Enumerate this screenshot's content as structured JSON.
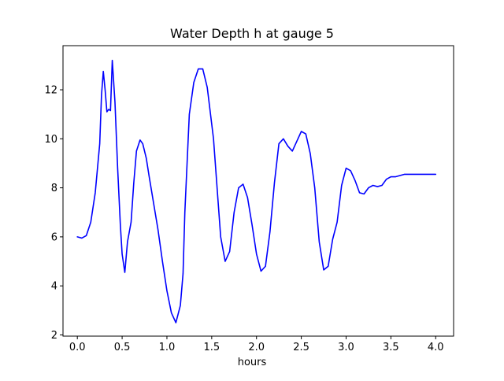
{
  "chart_data": {
    "type": "line",
    "title": "Water Depth h at gauge 5",
    "xlabel": "hours",
    "ylabel": "",
    "xlim": [
      -0.16,
      4.2
    ],
    "ylim": [
      1.95,
      13.8
    ],
    "xticks": [
      0.0,
      0.5,
      1.0,
      1.5,
      2.0,
      2.5,
      3.0,
      3.5,
      4.0
    ],
    "xtick_labels": [
      "0.0",
      "0.5",
      "1.0",
      "1.5",
      "2.0",
      "2.5",
      "3.0",
      "3.5",
      "4.0"
    ],
    "yticks": [
      2,
      4,
      6,
      8,
      10,
      12
    ],
    "ytick_labels": [
      "2",
      "4",
      "6",
      "8",
      "10",
      "12"
    ],
    "grid": false,
    "series": [
      {
        "color": "#0000ff",
        "x": [
          0.0,
          0.05,
          0.1,
          0.15,
          0.2,
          0.25,
          0.27,
          0.29,
          0.31,
          0.33,
          0.35,
          0.37,
          0.39,
          0.42,
          0.45,
          0.48,
          0.5,
          0.53,
          0.56,
          0.6,
          0.63,
          0.66,
          0.7,
          0.73,
          0.77,
          0.8,
          0.85,
          0.9,
          0.95,
          1.0,
          1.05,
          1.1,
          1.15,
          1.18,
          1.2,
          1.25,
          1.3,
          1.35,
          1.4,
          1.45,
          1.48,
          1.52,
          1.56,
          1.6,
          1.65,
          1.7,
          1.75,
          1.8,
          1.85,
          1.9,
          1.95,
          2.0,
          2.05,
          2.1,
          2.15,
          2.2,
          2.25,
          2.3,
          2.35,
          2.4,
          2.45,
          2.5,
          2.55,
          2.6,
          2.65,
          2.7,
          2.75,
          2.8,
          2.85,
          2.9,
          2.95,
          3.0,
          3.05,
          3.1,
          3.15,
          3.2,
          3.25,
          3.3,
          3.35,
          3.4,
          3.45,
          3.5,
          3.55,
          3.6,
          3.65,
          3.7,
          3.75,
          3.8,
          3.85,
          3.9,
          3.95,
          4.0
        ],
        "y": [
          6.0,
          5.95,
          6.05,
          6.6,
          7.8,
          9.8,
          11.8,
          12.75,
          12.0,
          11.1,
          11.2,
          11.15,
          13.2,
          11.5,
          8.8,
          6.5,
          5.3,
          4.55,
          5.8,
          6.6,
          8.2,
          9.5,
          9.95,
          9.8,
          9.2,
          8.5,
          7.4,
          6.3,
          5.0,
          3.8,
          2.9,
          2.5,
          3.2,
          4.5,
          7.0,
          11.0,
          12.3,
          12.85,
          12.85,
          12.1,
          11.2,
          10.0,
          8.0,
          6.0,
          5.0,
          5.4,
          7.0,
          8.0,
          8.15,
          7.6,
          6.5,
          5.3,
          4.6,
          4.8,
          6.2,
          8.2,
          9.8,
          10.0,
          9.7,
          9.5,
          9.9,
          10.3,
          10.2,
          9.4,
          8.0,
          5.8,
          4.65,
          4.8,
          5.9,
          6.6,
          8.1,
          8.8,
          8.7,
          8.3,
          7.8,
          7.75,
          8.0,
          8.1,
          8.05,
          8.1,
          8.35,
          8.45,
          8.45,
          8.5,
          8.55,
          8.55,
          8.55,
          8.55,
          8.55,
          8.55,
          8.55,
          8.55
        ]
      }
    ]
  }
}
